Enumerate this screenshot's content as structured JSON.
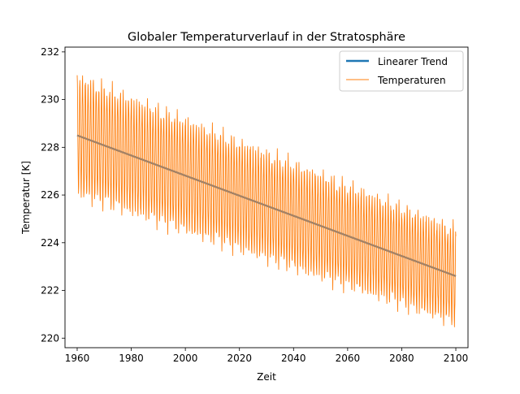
{
  "chart_data": {
    "type": "line",
    "title": "Globaler Temperaturverlauf in der Stratosphäre",
    "xlabel": "Zeit",
    "ylabel": "Temperatur [K]",
    "xlim": [
      1955.5,
      2104.5
    ],
    "ylim": [
      219.6,
      232.2
    ],
    "x_ticks": [
      1960,
      1980,
      2000,
      2020,
      2040,
      2060,
      2080,
      2100
    ],
    "y_ticks": [
      220,
      222,
      224,
      226,
      228,
      230,
      232
    ],
    "grid": false,
    "legend_position": "top-right",
    "series": [
      {
        "name": "Linearer Trend",
        "color": "#1f77b4",
        "x": [
          1960,
          2100
        ],
        "y": [
          228.5,
          222.6
        ]
      },
      {
        "name": "Temperaturen",
        "color": "#ff7f0e",
        "x_start": 1960,
        "x_end": 2100,
        "samples_per_year": 12,
        "trend_start": 228.5,
        "trend_end": 222.6,
        "seasonal_amplitude": 2.4,
        "seasonal_amplitude_end": 1.9
      }
    ],
    "overlap_color": "#a68367"
  }
}
